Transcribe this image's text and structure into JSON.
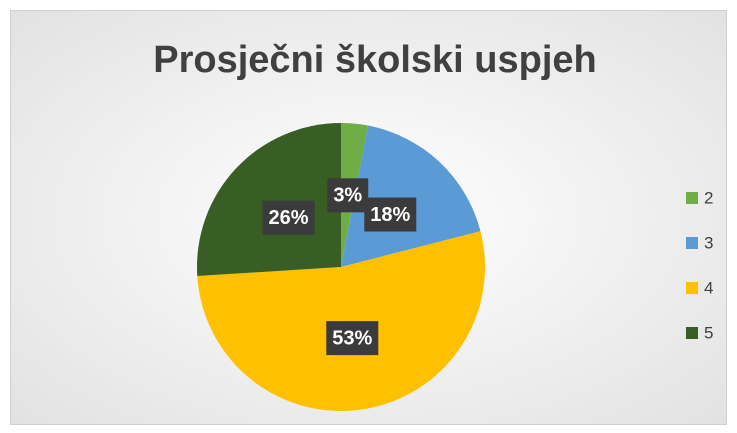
{
  "chart_data": {
    "type": "pie",
    "title": "Prosječni školski uspjeh",
    "categories": [
      "2",
      "3",
      "4",
      "5"
    ],
    "values": [
      3,
      18,
      53,
      26
    ],
    "value_labels": [
      "3%",
      "18%",
      "53%",
      "26%"
    ],
    "colors": [
      "#70ad47",
      "#5b9bd5",
      "#ffc000",
      "#385d25"
    ],
    "legend": "right"
  }
}
